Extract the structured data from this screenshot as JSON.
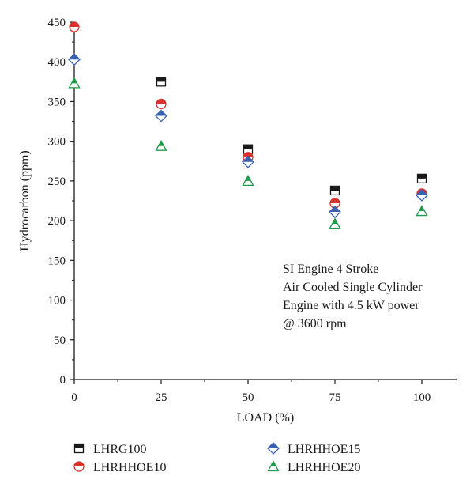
{
  "chart_data": {
    "type": "scatter",
    "title": "",
    "xlabel": "LOAD (%)",
    "ylabel": "Hydrocarbon (ppm)",
    "xlim": [
      0,
      110
    ],
    "ylim": [
      0,
      450
    ],
    "x_ticks": [
      0,
      25,
      50,
      75,
      100
    ],
    "y_ticks": [
      0,
      50,
      100,
      150,
      200,
      250,
      300,
      350,
      400,
      450
    ],
    "x": [
      0,
      25,
      50,
      75,
      100
    ],
    "grid": false,
    "legend_position": "bottom",
    "series": [
      {
        "name": "LHRG100",
        "values": [
          null,
          375,
          290,
          238,
          253
        ],
        "marker": "square-top-filled",
        "color": "#1a1a1a"
      },
      {
        "name": "LHRHHOE10",
        "values": [
          444,
          347,
          280,
          222,
          234
        ],
        "marker": "circle-top-filled",
        "color": "#d8322f"
      },
      {
        "name": "LHRHHOE15",
        "values": [
          403,
          332,
          274,
          211,
          232
        ],
        "marker": "diamond-top-filled",
        "color": "#3a5fae"
      },
      {
        "name": "LHRHHOE20",
        "values": [
          373,
          294,
          250,
          196,
          212
        ],
        "marker": "triangle-top-filled",
        "color": "#1f9a4a"
      }
    ],
    "annotation": [
      "SI Engine 4 Stroke",
      "Air Cooled Single Cylinder",
      "Engine with 4.5 kW power",
      "@ 3600 rpm"
    ]
  }
}
